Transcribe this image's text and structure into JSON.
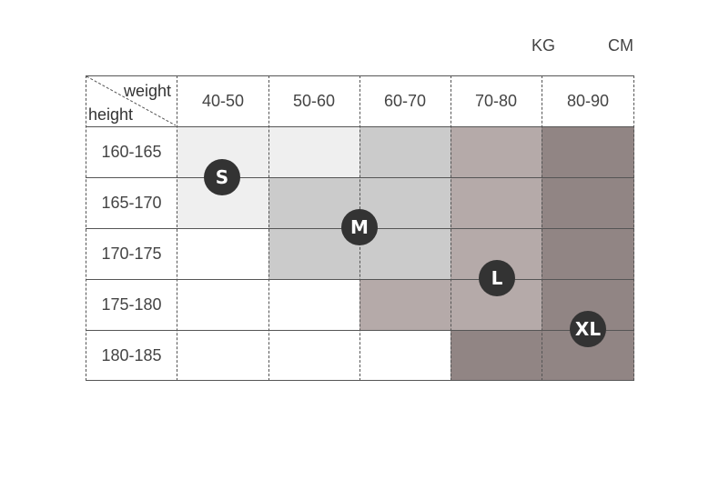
{
  "units": {
    "weight": "KG",
    "height": "CM"
  },
  "table": {
    "corner_top": "weight",
    "corner_bottom": "height",
    "columns": [
      "40-50",
      "50-60",
      "60-70",
      "70-80",
      "80-90"
    ],
    "rows": [
      "160-165",
      "165-170",
      "170-175",
      "175-180",
      "180-185"
    ]
  },
  "sizes": [
    "S",
    "M",
    "L",
    "XL"
  ],
  "colors": {
    "s_zone": "#efefef",
    "m_zone": "#cbcbcb",
    "l_zone": "#b5aaa9",
    "xl_zone": "#918584",
    "badge": "#333333"
  }
}
